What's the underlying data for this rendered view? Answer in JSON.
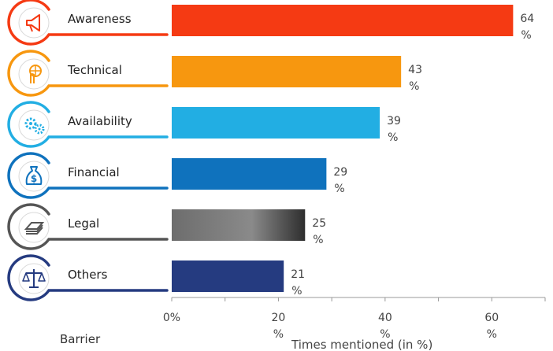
{
  "chart_data": {
    "type": "bar",
    "orientation": "horizontal",
    "categories": [
      "Awareness",
      "Technical",
      "Availability",
      "Financial",
      "Legal",
      "Others"
    ],
    "values": [
      64,
      43,
      39,
      29,
      25,
      21
    ],
    "value_labels": [
      [
        "64",
        "%"
      ],
      [
        "43",
        "%"
      ],
      [
        "39",
        "%"
      ],
      [
        "29",
        "%"
      ],
      [
        "25",
        "%"
      ],
      [
        "21",
        "%"
      ]
    ],
    "colors": [
      "#f53a13",
      "#f7970f",
      "#22aee3",
      "#0f72bd",
      "#555555",
      "#253b80"
    ],
    "icons": [
      "megaphone-icon",
      "touch-globe-icon",
      "gears-icon",
      "money-bag-icon",
      "cash-stack-icon",
      "scales-icon"
    ],
    "xlim": [
      0,
      70
    ],
    "xticks": [
      {
        "value": 0,
        "label": [
          "0%"
        ]
      },
      {
        "value": 20,
        "label": [
          "20",
          "%"
        ]
      },
      {
        "value": 40,
        "label": [
          "40",
          "%"
        ]
      },
      {
        "value": 60,
        "label": [
          "60",
          "%"
        ]
      }
    ],
    "xlabel": "Times mentioned (in %)",
    "ylabel": "Barrier",
    "legend": "none",
    "grid": false
  }
}
